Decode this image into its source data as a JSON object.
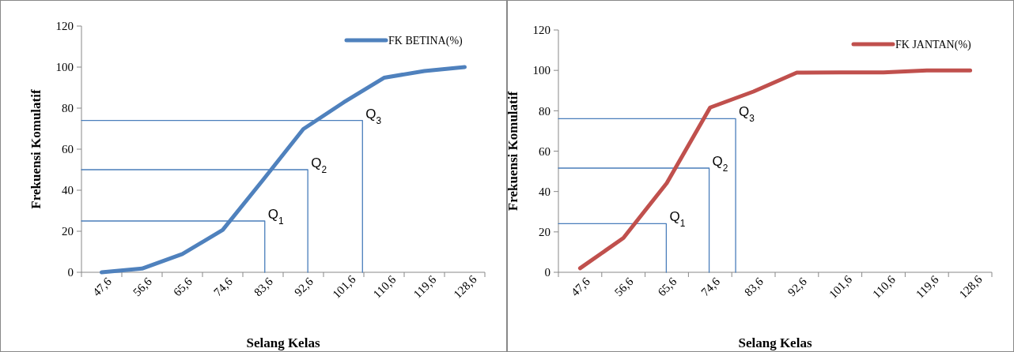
{
  "chart_data": [
    {
      "type": "line",
      "xlabel": "Selang Kelas",
      "ylabel": "Frekuensi Komulatif",
      "x": [
        47.6,
        56.6,
        65.6,
        74.6,
        83.6,
        92.6,
        101.6,
        110.6,
        119.6,
        128.6
      ],
      "xlim": [
        43.1,
        133.1
      ],
      "xticks": [
        {
          "value": 47.6,
          "label": "47,6"
        },
        {
          "value": 56.6,
          "label": "56,6"
        },
        {
          "value": 65.6,
          "label": "65,6"
        },
        {
          "value": 74.6,
          "label": "74,6"
        },
        {
          "value": 83.6,
          "label": "83,6"
        },
        {
          "value": 92.6,
          "label": "92,6"
        },
        {
          "value": 101.6,
          "label": "101,6"
        },
        {
          "value": 110.6,
          "label": "110,6"
        },
        {
          "value": 119.6,
          "label": "119,6"
        },
        {
          "value": 128.6,
          "label": "128,6"
        }
      ],
      "ylim": [
        0,
        120
      ],
      "yticks": [
        0,
        20,
        40,
        60,
        80,
        100,
        120
      ],
      "grid": false,
      "legend": "top right",
      "marker": "none",
      "series": [
        {
          "name": "FK BETINA(%)",
          "color": "#4f81bd",
          "values": [
            0,
            1.8,
            8.9,
            20.6,
            45,
            69.8,
            82.8,
            94.8,
            98.1,
            100
          ]
        },
        {
          "color": "#4a7ebb",
          "x": [
            43.1,
            84,
            84
          ],
          "values": [
            25,
            25,
            0
          ]
        },
        {
          "color": "#4a7ebb",
          "x": [
            43.1,
            93.6,
            93.6
          ],
          "values": [
            50,
            50,
            0
          ]
        },
        {
          "color": "#4a7ebb",
          "x": [
            43.1,
            105.8,
            105.8
          ],
          "values": [
            74,
            74,
            0
          ]
        }
      ],
      "annotations": [
        {
          "text": "Q$_{1}$",
          "x": 84,
          "y": 25
        },
        {
          "text": "Q$_{2}$",
          "x": 93.6,
          "y": 50
        },
        {
          "text": "Q$_{3}$",
          "x": 105.8,
          "y": 74
        }
      ]
    },
    {
      "type": "line",
      "xlabel": "Selang Kelas",
      "ylabel": "Frekuensi Komulatif",
      "x": [
        47.6,
        56.6,
        65.6,
        74.6,
        83.6,
        92.6,
        101.6,
        110.6,
        119.6,
        128.6
      ],
      "xlim": [
        43.1,
        133.1
      ],
      "xticks": [
        {
          "value": 47.6,
          "label": "47,6"
        },
        {
          "value": 56.6,
          "label": "56,6"
        },
        {
          "value": 65.6,
          "label": "65,6"
        },
        {
          "value": 74.6,
          "label": "74,6"
        },
        {
          "value": 83.6,
          "label": "83,6"
        },
        {
          "value": 92.6,
          "label": "92,6"
        },
        {
          "value": 101.6,
          "label": "101,6"
        },
        {
          "value": 110.6,
          "label": "110,6"
        },
        {
          "value": 119.6,
          "label": "119,6"
        },
        {
          "value": 128.6,
          "label": "128,6"
        }
      ],
      "ylim": [
        0,
        120
      ],
      "yticks": [
        0,
        20,
        40,
        60,
        80,
        100,
        120
      ],
      "grid": false,
      "legend": "top right",
      "marker": "none",
      "series": [
        {
          "name": "FK JANTAN(%)",
          "color": "#c0504d",
          "values": [
            2,
            17,
            44.2,
            81.6,
            89.5,
            98.9,
            99,
            99,
            100,
            100
          ]
        },
        {
          "color": "#4a7ebb",
          "x": [
            43.1,
            65.5,
            65.5
          ],
          "values": [
            24.1,
            24.1,
            0
          ]
        },
        {
          "color": "#4a7ebb",
          "x": [
            43.1,
            74.4,
            74.4
          ],
          "values": [
            51.6,
            51.6,
            0
          ]
        },
        {
          "color": "#4a7ebb",
          "x": [
            43.1,
            79.9,
            79.9
          ],
          "values": [
            76.1,
            76.1,
            0
          ]
        }
      ],
      "annotations": [
        {
          "text": "Q$_{1}$",
          "x": 65.5,
          "y": 24.1
        },
        {
          "text": "Q$_{2}$",
          "x": 74.4,
          "y": 51.6
        },
        {
          "text": "Q$_{3}$",
          "x": 79.9,
          "y": 76.1
        }
      ]
    }
  ]
}
